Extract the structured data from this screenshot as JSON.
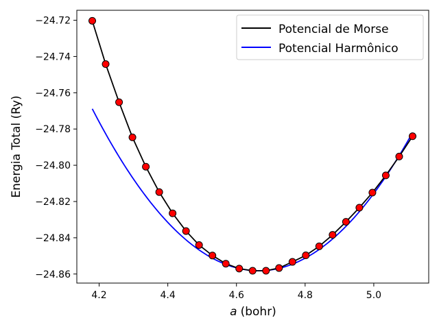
{
  "chart_data": {
    "type": "line",
    "title": "",
    "xlabel": "(bohr)",
    "xlabel_var": "a",
    "ylabel": "Energia Total (Ry)",
    "xlim": [
      4.135,
      5.16
    ],
    "ylim": [
      -24.865,
      -24.7145
    ],
    "x_ticks": [
      4.2,
      4.4,
      4.6,
      4.8,
      5.0
    ],
    "x_tick_labels": [
      "4.2",
      "4.4",
      "4.6",
      "4.8",
      "5.0"
    ],
    "y_ticks": [
      -24.72,
      -24.74,
      -24.76,
      -24.78,
      -24.8,
      -24.82,
      -24.84,
      -24.86
    ],
    "y_tick_labels": [
      "−24.72",
      "−24.74",
      "−24.76",
      "−24.78",
      "−24.80",
      "−24.82",
      "−24.84",
      "−24.86"
    ],
    "grid": false,
    "legend_position": "top-right",
    "series": [
      {
        "name": "Potencial de Morse",
        "color": "#000000",
        "style": "line",
        "x": [
          4.18,
          4.219,
          4.258,
          4.297,
          4.336,
          4.375,
          4.414,
          4.453,
          4.491,
          4.53,
          4.569,
          4.608,
          4.647,
          4.686,
          4.724,
          4.763,
          4.802,
          4.841,
          4.88,
          4.919,
          4.958,
          4.996,
          5.035,
          5.074,
          5.113
        ],
        "y": [
          -24.7203,
          -24.7442,
          -24.7652,
          -24.7846,
          -24.8008,
          -24.8148,
          -24.8265,
          -24.8363,
          -24.844,
          -24.8498,
          -24.8543,
          -24.857,
          -24.8582,
          -24.8582,
          -24.8567,
          -24.8533,
          -24.8497,
          -24.8447,
          -24.8384,
          -24.8312,
          -24.8234,
          -24.8151,
          -24.8056,
          -24.7952,
          -24.784
        ]
      },
      {
        "name": "Potencial Harmônico",
        "color": "#0000ff",
        "style": "line",
        "x_min": 4.18,
        "x_max": 5.113,
        "x0": 4.665,
        "e0": -24.8582,
        "k": 0.3798
      },
      {
        "name": "",
        "color": "#ff0000",
        "edge_color": "#000000",
        "style": "markers",
        "x": [
          4.18,
          4.219,
          4.258,
          4.297,
          4.336,
          4.375,
          4.414,
          4.453,
          4.491,
          4.53,
          4.569,
          4.608,
          4.647,
          4.686,
          4.724,
          4.763,
          4.802,
          4.841,
          4.88,
          4.919,
          4.958,
          4.996,
          5.035,
          5.074,
          5.113
        ],
        "y": [
          -24.7203,
          -24.7442,
          -24.7652,
          -24.7846,
          -24.8008,
          -24.8148,
          -24.8265,
          -24.8363,
          -24.844,
          -24.8498,
          -24.8543,
          -24.857,
          -24.8582,
          -24.8582,
          -24.8567,
          -24.8533,
          -24.8497,
          -24.8447,
          -24.8384,
          -24.8312,
          -24.8234,
          -24.8151,
          -24.8056,
          -24.7952,
          -24.784
        ]
      }
    ]
  }
}
